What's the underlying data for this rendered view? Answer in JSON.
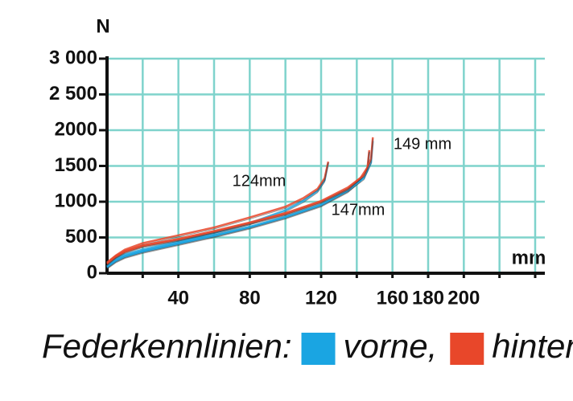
{
  "chart_data": {
    "type": "line",
    "y_label": "N",
    "x_label": "mm",
    "legend_title": "Federkennlinien:",
    "xlim": [
      0,
      240
    ],
    "xticks": [
      40,
      80,
      120,
      160,
      180,
      200
    ],
    "ylim": [
      0,
      3000
    ],
    "yticks": [
      0,
      500,
      1000,
      1500,
      2000,
      {
        "value": 2500,
        "label": "2 500"
      },
      {
        "value": 3000,
        "label": "3 000"
      }
    ],
    "grid": true,
    "annotations": [
      "124mm",
      "147mm",
      "149 mm"
    ],
    "series": [
      {
        "name": "vorne,",
        "color": "#1aa5e2",
        "curves": [
          {
            "x": [
              0,
              5,
              10,
              20,
              40,
              60,
              80,
              100,
              110,
              118,
              122,
              124
            ],
            "values": [
              100,
              200,
              260,
              330,
              440,
              560,
              700,
              880,
              1010,
              1150,
              1300,
              1550
            ]
          },
          {
            "x": [
              0,
              5,
              10,
              20,
              40,
              60,
              80,
              100,
              120,
              135,
              142,
              146,
              147
            ],
            "values": [
              80,
              170,
              230,
              300,
              410,
              520,
              640,
              780,
              950,
              1150,
              1300,
              1450,
              1700
            ]
          },
          {
            "x": [
              0,
              5,
              10,
              20,
              40,
              60,
              80,
              100,
              120,
              135,
              144,
              148,
              149
            ],
            "values": [
              90,
              180,
              240,
              310,
              420,
              530,
              650,
              790,
              960,
              1160,
              1330,
              1550,
              1850
            ]
          }
        ]
      },
      {
        "name": "hinten.",
        "color": "#e8472a",
        "curves": [
          {
            "x": [
              0,
              5,
              10,
              20,
              40,
              60,
              80,
              100,
              110,
              118,
              122,
              124
            ],
            "values": [
              150,
              250,
              330,
              420,
              530,
              640,
              780,
              930,
              1050,
              1180,
              1330,
              1560
            ]
          },
          {
            "x": [
              0,
              5,
              10,
              20,
              40,
              60,
              80,
              100,
              120,
              135,
              142,
              146,
              147
            ],
            "values": [
              130,
              230,
              300,
              380,
              470,
              580,
              700,
              830,
              1000,
              1180,
              1330,
              1480,
              1720
            ]
          },
          {
            "x": [
              0,
              5,
              10,
              20,
              40,
              60,
              80,
              100,
              120,
              135,
              144,
              148,
              149
            ],
            "values": [
              140,
              240,
              310,
              390,
              480,
              590,
              710,
              840,
              1010,
              1200,
              1370,
              1600,
              1900
            ]
          }
        ]
      }
    ]
  }
}
